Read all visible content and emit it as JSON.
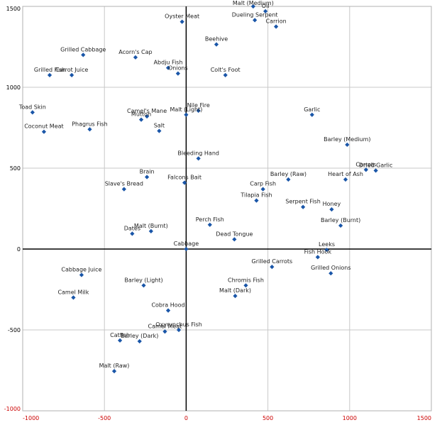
{
  "chart_data": {
    "type": "scatter",
    "title": "",
    "xlabel": "",
    "ylabel": "",
    "xlim": [
      -1000,
      1500
    ],
    "ylim": [
      -1000,
      1500
    ],
    "x_ticks": [
      -1000,
      -500,
      0,
      500,
      1000,
      1500
    ],
    "y_ticks": [
      -1000,
      -500,
      0,
      500,
      1000,
      1500
    ],
    "tick_color": "#cc0000",
    "point_color": "#1a56a8",
    "grid": true,
    "points": [
      {
        "label": "Malt (Medium)",
        "x": 410,
        "y": 1500
      },
      {
        "label": "Oil",
        "x": 485,
        "y": 1470
      },
      {
        "label": "Dueling Serpent",
        "x": 420,
        "y": 1415
      },
      {
        "label": "Carrion",
        "x": 550,
        "y": 1375
      },
      {
        "label": "Oyster Meat",
        "x": -25,
        "y": 1405
      },
      {
        "label": "Beehive",
        "x": 185,
        "y": 1265
      },
      {
        "label": "Grilled Cabbage",
        "x": -630,
        "y": 1200
      },
      {
        "label": "Acorn's Cap",
        "x": -310,
        "y": 1185
      },
      {
        "label": "Abdju Fish",
        "x": -110,
        "y": 1120
      },
      {
        "label": "Onions",
        "x": -50,
        "y": 1085
      },
      {
        "label": "Colt's Foot",
        "x": 240,
        "y": 1075
      },
      {
        "label": "Grilled Fish",
        "x": -835,
        "y": 1075
      },
      {
        "label": "Carrot Juice",
        "x": -700,
        "y": 1075
      },
      {
        "label": "Toad Skin",
        "x": -940,
        "y": 845
      },
      {
        "label": "Nile Fire",
        "x": 75,
        "y": 855
      },
      {
        "label": "Malt (Light)",
        "x": 0,
        "y": 830
      },
      {
        "label": "Camel's Mane",
        "x": -240,
        "y": 820
      },
      {
        "label": "Mutton",
        "x": -275,
        "y": 800
      },
      {
        "label": "Garlic",
        "x": 770,
        "y": 830
      },
      {
        "label": "Coconut Meat",
        "x": -870,
        "y": 725
      },
      {
        "label": "Phagrus Fish",
        "x": -590,
        "y": 740
      },
      {
        "label": "Salt",
        "x": -165,
        "y": 730
      },
      {
        "label": "Barley (Medium)",
        "x": 985,
        "y": 645
      },
      {
        "label": "Bleeding Hand",
        "x": 75,
        "y": 560
      },
      {
        "label": "Carrots",
        "x": 1100,
        "y": 490
      },
      {
        "label": "Dried Garlic",
        "x": 1160,
        "y": 485
      },
      {
        "label": "Brain",
        "x": -240,
        "y": 445
      },
      {
        "label": "Falcons Bait",
        "x": -10,
        "y": 410
      },
      {
        "label": "Barley (Raw)",
        "x": 625,
        "y": 430
      },
      {
        "label": "Heart of Ash",
        "x": 975,
        "y": 430
      },
      {
        "label": "Slave's Bread",
        "x": -380,
        "y": 370
      },
      {
        "label": "Carp Fish",
        "x": 470,
        "y": 370
      },
      {
        "label": "Tilapia Fish",
        "x": 430,
        "y": 300
      },
      {
        "label": "Serpent Fish",
        "x": 715,
        "y": 260
      },
      {
        "label": "Honey",
        "x": 890,
        "y": 245
      },
      {
        "label": "Barley (Burnt)",
        "x": 945,
        "y": 145
      },
      {
        "label": "Perch Fish",
        "x": 145,
        "y": 150
      },
      {
        "label": "Malt (Burnt)",
        "x": -215,
        "y": 110
      },
      {
        "label": "Dates",
        "x": -330,
        "y": 95
      },
      {
        "label": "Dead Tongue",
        "x": 295,
        "y": 60
      },
      {
        "label": "Cabbage",
        "x": 0,
        "y": 0
      },
      {
        "label": "Leeks",
        "x": 860,
        "y": -5
      },
      {
        "label": "Fish Hook",
        "x": 805,
        "y": -50
      },
      {
        "label": "Grilled Carrots",
        "x": 525,
        "y": -110
      },
      {
        "label": "Grilled Onions",
        "x": 885,
        "y": -150
      },
      {
        "label": "Cabbage Juice",
        "x": -640,
        "y": -160
      },
      {
        "label": "Barley (Light)",
        "x": -260,
        "y": -225
      },
      {
        "label": "Chromis Fish",
        "x": 365,
        "y": -225
      },
      {
        "label": "Malt (Dark)",
        "x": 300,
        "y": -290
      },
      {
        "label": "Camel Milk",
        "x": -690,
        "y": -300
      },
      {
        "label": "Cobra Hood",
        "x": -110,
        "y": -380
      },
      {
        "label": "Oxyrynchus Fish",
        "x": -45,
        "y": -500
      },
      {
        "label": "Camel Meat",
        "x": -130,
        "y": -510
      },
      {
        "label": "Catfish",
        "x": -405,
        "y": -565
      },
      {
        "label": "Barley (Dark)",
        "x": -285,
        "y": -570
      },
      {
        "label": "Malt (Raw)",
        "x": -440,
        "y": -755
      }
    ]
  }
}
